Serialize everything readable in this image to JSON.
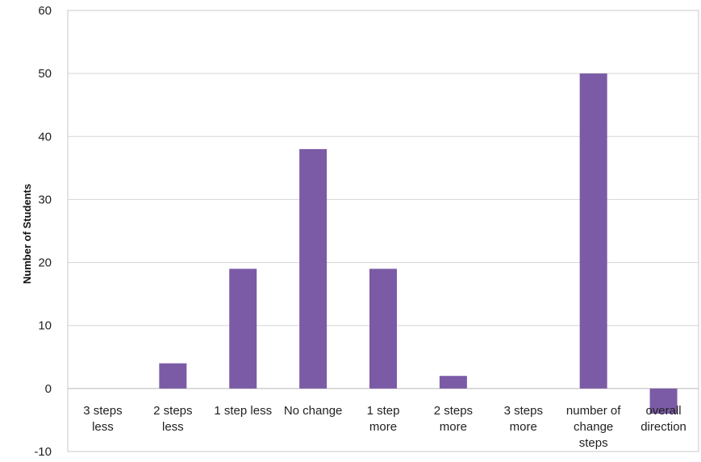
{
  "chart_data": {
    "type": "bar",
    "title": "",
    "xlabel": "",
    "ylabel": "Number of Students",
    "ylim": [
      -10,
      60
    ],
    "yticks": [
      -10,
      0,
      10,
      20,
      30,
      40,
      50,
      60
    ],
    "grid": true,
    "legend": "none",
    "categories": [
      [
        "3 steps",
        "less"
      ],
      [
        "2 steps",
        "less"
      ],
      [
        "1 step less"
      ],
      [
        "No change"
      ],
      [
        "1 step",
        "more"
      ],
      [
        "2 steps",
        "more"
      ],
      [
        "3 steps",
        "more"
      ],
      [
        "number of",
        "change",
        "steps"
      ],
      [
        "overall",
        "direction"
      ]
    ],
    "values": [
      0,
      4,
      19,
      38,
      19,
      2,
      0,
      50,
      -4
    ],
    "colors": {
      "bar": "#7B5BA6",
      "grid": "#D6D6D6",
      "axis": "#B8B8B8"
    }
  }
}
